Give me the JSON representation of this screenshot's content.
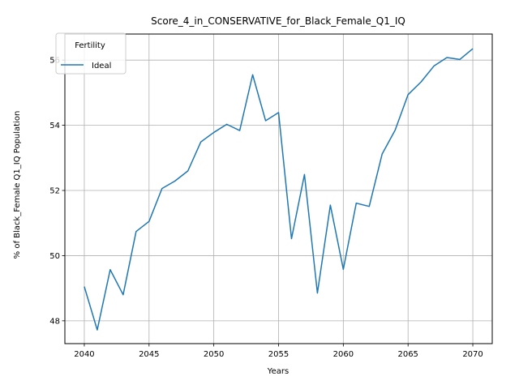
{
  "chart_data": {
    "type": "line",
    "title": "Score_4_in_CONSERVATIVE_for_Black_Female_Q1_IQ",
    "xlabel": "Years",
    "ylabel": "% of Black_Female Q1_IQ Population",
    "xlim": [
      2038.5,
      2071.5
    ],
    "ylim": [
      47.3,
      56.8
    ],
    "x_ticks": [
      2040,
      2045,
      2050,
      2055,
      2060,
      2065,
      2070
    ],
    "y_ticks": [
      48,
      50,
      52,
      54,
      56
    ],
    "grid": true,
    "legend": {
      "title": "Fertility",
      "placement": "top-left"
    },
    "series": [
      {
        "name": "Ideal",
        "color": "#1f77b4",
        "x": [
          2040,
          2041,
          2042,
          2043,
          2044,
          2045,
          2046,
          2047,
          2048,
          2049,
          2050,
          2051,
          2052,
          2053,
          2054,
          2055,
          2056,
          2057,
          2058,
          2059,
          2060,
          2061,
          2062,
          2063,
          2064,
          2065,
          2066,
          2067,
          2068,
          2069,
          2070
        ],
        "y": [
          49.05,
          47.72,
          49.57,
          48.8,
          50.74,
          51.05,
          52.06,
          52.29,
          52.6,
          53.49,
          53.78,
          54.03,
          53.84,
          55.55,
          54.14,
          54.39,
          50.52,
          52.49,
          48.85,
          51.55,
          49.58,
          51.61,
          51.51,
          53.12,
          53.85,
          54.94,
          55.33,
          55.82,
          56.08,
          56.02,
          56.35
        ]
      }
    ]
  }
}
